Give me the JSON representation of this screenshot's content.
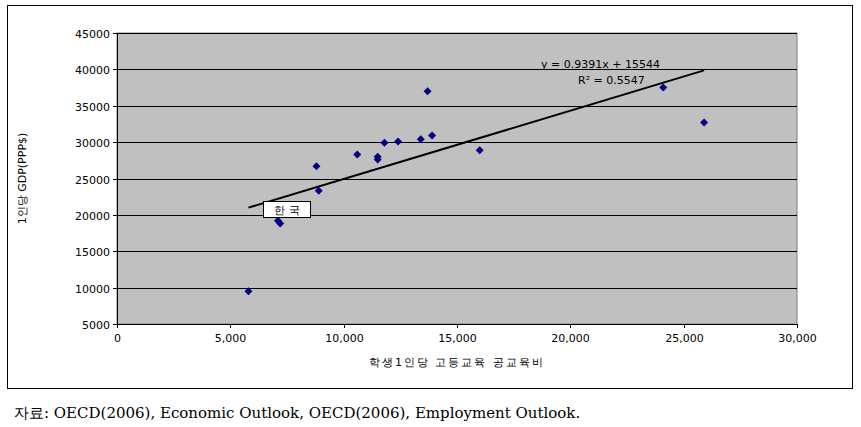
{
  "chart_data": {
    "type": "scatter",
    "x_label": "학생1인당 고등교육 공교육비",
    "y_label": "1인당 GDP(PPP$)",
    "source": "자료: OECD(2006), Economic Outlook, OECD(2006), Employment Outlook.",
    "x": [
      5800,
      7100,
      7200,
      8800,
      8900,
      10600,
      11500,
      11500,
      11800,
      12400,
      13400,
      13700,
      13900,
      16000,
      24100,
      25900
    ],
    "values": [
      9500,
      19200,
      18800,
      26700,
      23300,
      28300,
      28000,
      27600,
      29900,
      30100,
      30400,
      37000,
      30900,
      28900,
      37500,
      32700
    ],
    "color": "#000080",
    "marker": "diamond",
    "xlim": [
      0,
      30000
    ],
    "ylim": [
      5000,
      45000
    ],
    "xticks": [
      {
        "value": 0,
        "label": "0"
      },
      {
        "value": 5000,
        "label": "5,000"
      },
      {
        "value": 10000,
        "label": "10,000"
      },
      {
        "value": 15000,
        "label": "15,000"
      },
      {
        "value": 20000,
        "label": "20,000"
      },
      {
        "value": 25000,
        "label": "25,000"
      },
      {
        "value": 30000,
        "label": "30,000"
      }
    ],
    "yticks": [
      5000,
      10000,
      15000,
      20000,
      25000,
      30000,
      35000,
      40000,
      45000
    ],
    "grid": true,
    "trendline": {
      "slope": 0.9391,
      "intercept": 15544,
      "r_squared": 0.5547,
      "label": "y = 0.9391x + 15544",
      "r2_label": "R² = 0.5547"
    },
    "annotations": [
      {
        "text": "한 국",
        "x": 7100,
        "y": 19200
      }
    ]
  }
}
